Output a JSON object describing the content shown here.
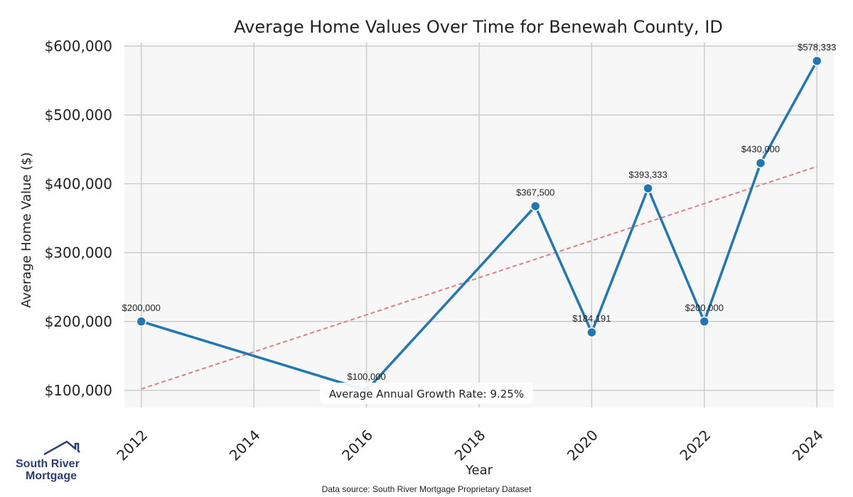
{
  "chart_data": {
    "type": "line",
    "title": "Average Home Values Over Time for Benewah County, ID",
    "xlabel": "Year",
    "ylabel": "Average Home Value ($)",
    "x": [
      2012,
      2016,
      2019,
      2020,
      2021,
      2022,
      2023,
      2024
    ],
    "series": [
      {
        "values": [
          200000,
          100000,
          367500,
          184191,
          393333,
          200000,
          430000,
          578333
        ],
        "labels": [
          "$200,000",
          "$100,000",
          "$367,500",
          "$184,191",
          "$393,333",
          "$200,000",
          "$430,000",
          "$578,333"
        ],
        "color": "#1f77b4"
      }
    ],
    "trendline": {
      "x": [
        2012,
        2024
      ],
      "y": [
        102000,
        425000
      ],
      "color": "#d98080",
      "style": "dashed"
    },
    "xticks": [
      2012,
      2014,
      2016,
      2018,
      2020,
      2022,
      2024
    ],
    "xtick_labels": [
      "2012",
      "2014",
      "2016",
      "2018",
      "2020",
      "2022",
      "2024"
    ],
    "yticks": [
      100000,
      200000,
      300000,
      400000,
      500000,
      600000
    ],
    "ytick_labels": [
      "$100,000",
      "$200,000",
      "$300,000",
      "$400,000",
      "$500,000",
      "$600,000"
    ],
    "xlim": [
      2011.7,
      2024.3
    ],
    "ylim": [
      75000,
      605000
    ],
    "grid": true,
    "background": "#f7f7f7",
    "annotation": "Average Annual Growth Rate: 9.25%"
  },
  "footer": {
    "source": "Data source: South River Mortgage Proprietary Dataset"
  },
  "logo": {
    "line1": "South River",
    "line2": "Mortgage"
  }
}
